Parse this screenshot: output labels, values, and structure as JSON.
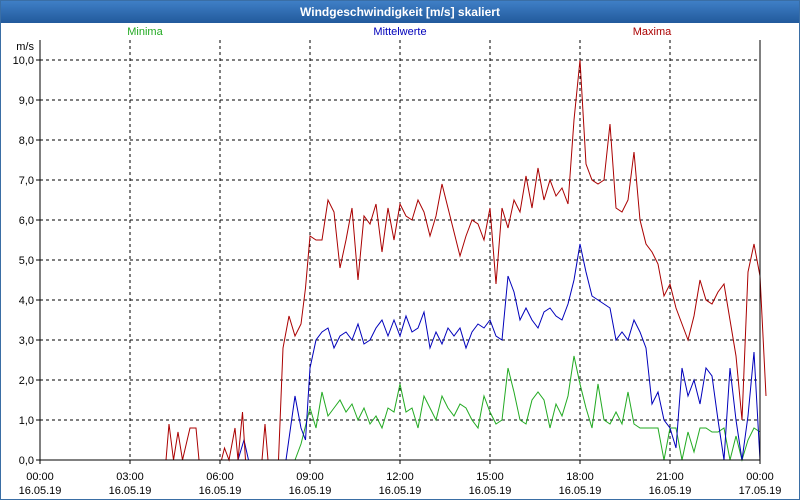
{
  "window": {
    "title": "Windgeschwindigkeit [m/s] skaliert"
  },
  "chart_data": {
    "type": "line",
    "title": "Windgeschwindigkeit [m/s] skaliert",
    "ylabel": "m/s",
    "xlabel": "",
    "ylim": [
      0,
      10.5
    ],
    "xlim_hours": [
      0,
      24
    ],
    "grid": true,
    "y_ticks": [
      "0,0",
      "1,0",
      "2,0",
      "3,0",
      "4,0",
      "5,0",
      "6,0",
      "7,0",
      "8,0",
      "9,0",
      "10,0"
    ],
    "x_ticks": [
      {
        "time": "00:00",
        "date": "16.05.19"
      },
      {
        "time": "03:00",
        "date": "16.05.19"
      },
      {
        "time": "06:00",
        "date": "16.05.19"
      },
      {
        "time": "09:00",
        "date": "16.05.19"
      },
      {
        "time": "12:00",
        "date": "16.05.19"
      },
      {
        "time": "15:00",
        "date": "16.05.19"
      },
      {
        "time": "18:00",
        "date": "16.05.19"
      },
      {
        "time": "21:00",
        "date": "16.05.19"
      },
      {
        "time": "00:00",
        "date": "17.05.19"
      }
    ],
    "series": [
      {
        "name": "Minima",
        "color": "#22aa22",
        "points": [
          [
            0,
            0
          ],
          [
            8.5,
            0
          ],
          [
            8.7,
            0.4
          ],
          [
            9.0,
            1.3
          ],
          [
            9.2,
            0.8
          ],
          [
            9.4,
            1.7
          ],
          [
            9.6,
            1.1
          ],
          [
            9.8,
            1.3
          ],
          [
            10.0,
            1.5
          ],
          [
            10.2,
            1.2
          ],
          [
            10.4,
            1.4
          ],
          [
            10.6,
            1.0
          ],
          [
            10.8,
            1.3
          ],
          [
            11.0,
            0.9
          ],
          [
            11.2,
            1.1
          ],
          [
            11.4,
            0.8
          ],
          [
            11.6,
            1.3
          ],
          [
            11.8,
            1.2
          ],
          [
            12.0,
            1.9
          ],
          [
            12.2,
            1.2
          ],
          [
            12.4,
            1.3
          ],
          [
            12.6,
            0.8
          ],
          [
            12.8,
            1.6
          ],
          [
            13.0,
            1.3
          ],
          [
            13.2,
            1.0
          ],
          [
            13.4,
            1.6
          ],
          [
            13.6,
            1.3
          ],
          [
            13.8,
            1.1
          ],
          [
            14.0,
            1.4
          ],
          [
            14.2,
            1.3
          ],
          [
            14.4,
            1.0
          ],
          [
            14.6,
            0.8
          ],
          [
            14.8,
            1.6
          ],
          [
            15.0,
            1.2
          ],
          [
            15.2,
            0.9
          ],
          [
            15.4,
            1.0
          ],
          [
            15.6,
            2.3
          ],
          [
            15.8,
            1.7
          ],
          [
            16.0,
            1.0
          ],
          [
            16.2,
            0.9
          ],
          [
            16.4,
            1.5
          ],
          [
            16.6,
            1.7
          ],
          [
            16.8,
            1.5
          ],
          [
            17.0,
            0.8
          ],
          [
            17.2,
            1.4
          ],
          [
            17.4,
            1.1
          ],
          [
            17.6,
            1.6
          ],
          [
            17.8,
            2.6
          ],
          [
            18.0,
            1.9
          ],
          [
            18.2,
            1.3
          ],
          [
            18.4,
            0.8
          ],
          [
            18.6,
            1.9
          ],
          [
            18.8,
            1.0
          ],
          [
            19.0,
            0.9
          ],
          [
            19.2,
            1.2
          ],
          [
            19.4,
            0.9
          ],
          [
            19.6,
            1.7
          ],
          [
            19.8,
            0.9
          ],
          [
            20.0,
            0.8
          ],
          [
            20.2,
            0.8
          ],
          [
            20.4,
            0.8
          ],
          [
            20.6,
            0.8
          ],
          [
            20.8,
            0.0
          ],
          [
            21.0,
            0.8
          ],
          [
            21.2,
            0.8
          ],
          [
            21.4,
            0.0
          ],
          [
            21.6,
            0.7
          ],
          [
            21.8,
            0.2
          ],
          [
            22.0,
            0.8
          ],
          [
            22.2,
            0.8
          ],
          [
            22.4,
            0.7
          ],
          [
            22.6,
            0.7
          ],
          [
            22.8,
            0.8
          ],
          [
            23.0,
            0.0
          ],
          [
            23.2,
            0.6
          ],
          [
            23.4,
            0.0
          ],
          [
            23.6,
            0.5
          ],
          [
            23.8,
            0.8
          ],
          [
            24.0,
            0.7
          ]
        ]
      },
      {
        "name": "Mittelwerte",
        "color": "#0000bb",
        "points": [
          [
            0,
            0
          ],
          [
            6.6,
            0
          ],
          [
            6.8,
            0.5
          ],
          [
            6.95,
            0
          ],
          [
            8.2,
            0
          ],
          [
            8.5,
            1.6
          ],
          [
            8.7,
            0.8
          ],
          [
            8.85,
            0.5
          ],
          [
            9.0,
            2.3
          ],
          [
            9.2,
            3.0
          ],
          [
            9.4,
            3.2
          ],
          [
            9.6,
            3.3
          ],
          [
            9.8,
            2.8
          ],
          [
            10.0,
            3.1
          ],
          [
            10.2,
            3.2
          ],
          [
            10.4,
            3.0
          ],
          [
            10.6,
            3.4
          ],
          [
            10.8,
            2.9
          ],
          [
            11.0,
            3.0
          ],
          [
            11.2,
            3.3
          ],
          [
            11.4,
            3.5
          ],
          [
            11.6,
            3.1
          ],
          [
            11.8,
            3.5
          ],
          [
            12.0,
            3.1
          ],
          [
            12.2,
            3.6
          ],
          [
            12.4,
            3.2
          ],
          [
            12.6,
            3.3
          ],
          [
            12.8,
            3.7
          ],
          [
            13.0,
            2.8
          ],
          [
            13.2,
            3.2
          ],
          [
            13.4,
            2.9
          ],
          [
            13.6,
            3.3
          ],
          [
            13.8,
            3.1
          ],
          [
            14.0,
            3.3
          ],
          [
            14.2,
            2.8
          ],
          [
            14.4,
            3.2
          ],
          [
            14.6,
            3.4
          ],
          [
            14.8,
            3.3
          ],
          [
            15.0,
            3.5
          ],
          [
            15.2,
            3.1
          ],
          [
            15.4,
            3.0
          ],
          [
            15.6,
            4.6
          ],
          [
            15.8,
            4.2
          ],
          [
            16.0,
            3.5
          ],
          [
            16.2,
            3.8
          ],
          [
            16.4,
            3.5
          ],
          [
            16.6,
            3.3
          ],
          [
            16.8,
            3.7
          ],
          [
            17.0,
            3.8
          ],
          [
            17.2,
            3.6
          ],
          [
            17.4,
            3.5
          ],
          [
            17.6,
            3.9
          ],
          [
            17.8,
            4.5
          ],
          [
            18.0,
            5.4
          ],
          [
            18.2,
            4.7
          ],
          [
            18.4,
            4.1
          ],
          [
            18.6,
            4.0
          ],
          [
            18.8,
            3.9
          ],
          [
            19.0,
            3.8
          ],
          [
            19.2,
            3.0
          ],
          [
            19.4,
            3.2
          ],
          [
            19.6,
            3.0
          ],
          [
            19.8,
            3.5
          ],
          [
            20.0,
            3.2
          ],
          [
            20.2,
            2.8
          ],
          [
            20.4,
            1.4
          ],
          [
            20.6,
            1.7
          ],
          [
            20.8,
            1.0
          ],
          [
            21.0,
            0.8
          ],
          [
            21.2,
            0.3
          ],
          [
            21.4,
            2.3
          ],
          [
            21.6,
            1.6
          ],
          [
            21.8,
            2.0
          ],
          [
            22.0,
            1.4
          ],
          [
            22.2,
            2.3
          ],
          [
            22.4,
            2.1
          ],
          [
            22.6,
            1.0
          ],
          [
            22.8,
            0.0
          ],
          [
            23.0,
            2.3
          ],
          [
            23.2,
            1.0
          ],
          [
            23.4,
            0.0
          ],
          [
            23.6,
            1.1
          ],
          [
            23.8,
            2.7
          ],
          [
            24.0,
            0.0
          ]
        ]
      },
      {
        "name": "Maxima",
        "color": "#aa0000",
        "points": [
          [
            0,
            0
          ],
          [
            4.2,
            0
          ],
          [
            4.3,
            0.9
          ],
          [
            4.45,
            0
          ],
          [
            4.6,
            0.7
          ],
          [
            4.75,
            0
          ],
          [
            5.0,
            0.8
          ],
          [
            5.2,
            0.8
          ],
          [
            5.3,
            0
          ],
          [
            6.05,
            0
          ],
          [
            6.15,
            0.3
          ],
          [
            6.3,
            0
          ],
          [
            6.5,
            0.8
          ],
          [
            6.6,
            0
          ],
          [
            6.75,
            1.2
          ],
          [
            6.85,
            0
          ],
          [
            7.4,
            0
          ],
          [
            7.5,
            0.9
          ],
          [
            7.6,
            0
          ],
          [
            7.95,
            0
          ],
          [
            8.1,
            2.8
          ],
          [
            8.3,
            3.6
          ],
          [
            8.5,
            3.1
          ],
          [
            8.7,
            3.4
          ],
          [
            8.85,
            4.3
          ],
          [
            9.0,
            5.6
          ],
          [
            9.2,
            5.5
          ],
          [
            9.4,
            5.5
          ],
          [
            9.6,
            6.5
          ],
          [
            9.8,
            6.2
          ],
          [
            10.0,
            4.8
          ],
          [
            10.2,
            5.5
          ],
          [
            10.4,
            6.3
          ],
          [
            10.6,
            4.5
          ],
          [
            10.8,
            6.1
          ],
          [
            11.0,
            5.9
          ],
          [
            11.2,
            6.4
          ],
          [
            11.4,
            5.2
          ],
          [
            11.6,
            6.3
          ],
          [
            11.8,
            5.5
          ],
          [
            12.0,
            6.4
          ],
          [
            12.2,
            6.1
          ],
          [
            12.4,
            6.0
          ],
          [
            12.6,
            6.5
          ],
          [
            12.8,
            6.2
          ],
          [
            13.0,
            5.6
          ],
          [
            13.2,
            6.1
          ],
          [
            13.4,
            6.9
          ],
          [
            13.6,
            6.3
          ],
          [
            13.8,
            5.7
          ],
          [
            14.0,
            5.1
          ],
          [
            14.2,
            5.6
          ],
          [
            14.4,
            6.0
          ],
          [
            14.6,
            5.9
          ],
          [
            14.8,
            5.5
          ],
          [
            15.0,
            6.3
          ],
          [
            15.2,
            4.4
          ],
          [
            15.4,
            6.3
          ],
          [
            15.6,
            5.8
          ],
          [
            15.8,
            6.5
          ],
          [
            16.0,
            6.2
          ],
          [
            16.2,
            7.1
          ],
          [
            16.4,
            6.3
          ],
          [
            16.6,
            7.3
          ],
          [
            16.8,
            6.5
          ],
          [
            17.0,
            7.0
          ],
          [
            17.2,
            6.6
          ],
          [
            17.4,
            6.8
          ],
          [
            17.6,
            6.4
          ],
          [
            17.8,
            8.5
          ],
          [
            18.0,
            10.0
          ],
          [
            18.2,
            7.4
          ],
          [
            18.4,
            7.0
          ],
          [
            18.6,
            6.9
          ],
          [
            18.8,
            7.0
          ],
          [
            19.0,
            8.4
          ],
          [
            19.2,
            6.3
          ],
          [
            19.4,
            6.2
          ],
          [
            19.6,
            6.5
          ],
          [
            19.8,
            7.7
          ],
          [
            20.0,
            6.0
          ],
          [
            20.2,
            5.4
          ],
          [
            20.4,
            5.2
          ],
          [
            20.6,
            4.9
          ],
          [
            20.8,
            4.1
          ],
          [
            21.0,
            4.4
          ],
          [
            21.2,
            3.8
          ],
          [
            21.4,
            3.4
          ],
          [
            21.6,
            3.0
          ],
          [
            21.8,
            3.6
          ],
          [
            22.0,
            4.5
          ],
          [
            22.2,
            4.0
          ],
          [
            22.4,
            3.9
          ],
          [
            22.6,
            4.2
          ],
          [
            22.8,
            4.4
          ],
          [
            23.0,
            3.5
          ],
          [
            23.2,
            2.6
          ],
          [
            23.4,
            1.0
          ],
          [
            23.6,
            4.7
          ],
          [
            23.8,
            5.4
          ],
          [
            24.0,
            4.6
          ],
          [
            24.2,
            1.6
          ]
        ]
      }
    ]
  }
}
